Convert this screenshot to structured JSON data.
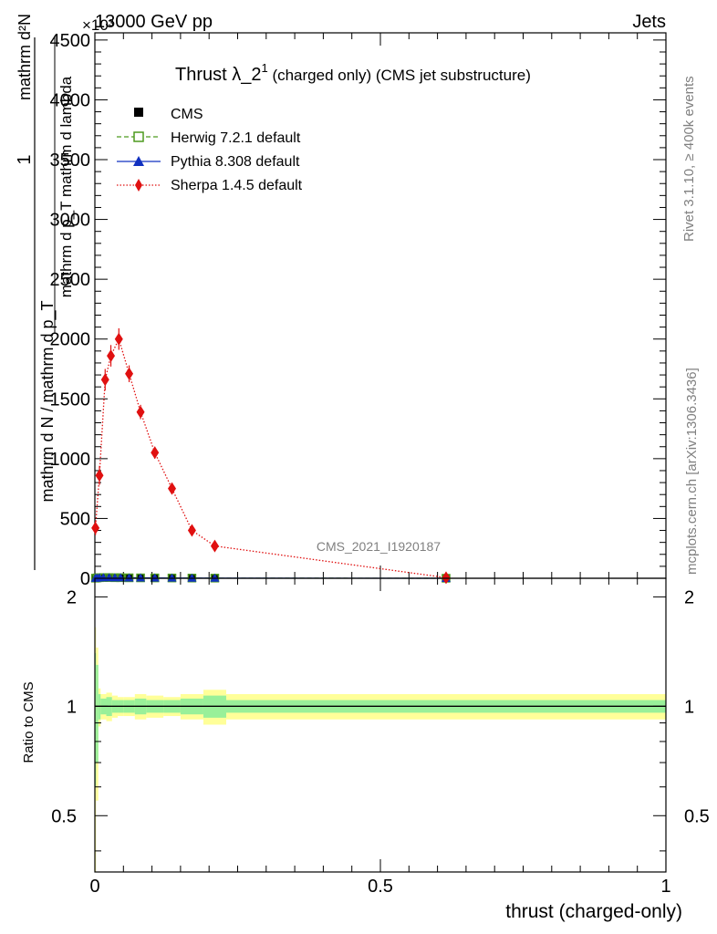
{
  "header": {
    "energy_label": "13000 GeV pp",
    "process_label": "Jets",
    "exponent_label": "×10³"
  },
  "side_labels": {
    "rivet": "Rivet 3.1.10, ≥ 400k events",
    "mcplots": "mcplots.cern.ch [arXiv:1306.3436]"
  },
  "watermark": "CMS_2021_I1920187",
  "main_ylabel": {
    "numer_1": "1",
    "frac1_numer": "mathrm d²N",
    "frac1_denom": "mathrm d p_T mathrm d lambda",
    "frac2_denom": "mathrm d N / mathrm d p_T"
  },
  "chart_data": [
    {
      "type": "line",
      "title": "Thrust λ_2¹ (charged only) (CMS jet substructure)",
      "title_main": "Thrust λ_2",
      "title_sup": "1",
      "title_sub": " (charged only) (CMS jet substructure)",
      "xlabel": "thrust (charged-only)",
      "xlim": [
        0,
        1
      ],
      "ylim": [
        0,
        4560
      ],
      "yticks": [
        0,
        500,
        1000,
        1500,
        2000,
        2500,
        3000,
        3500,
        4000,
        4500
      ],
      "ytick_labels": [
        "0",
        "500",
        "1000",
        "1500",
        "2000",
        "2500",
        "3000",
        "3500",
        "4000",
        "4500"
      ],
      "legend": [
        {
          "name": "CMS",
          "color": "#000000",
          "marker": "square-filled",
          "line": "none"
        },
        {
          "name": "Herwig 7.2.1 default",
          "color": "#4d9a1f",
          "marker": "square-open",
          "line": "dashed"
        },
        {
          "name": "Pythia 8.308 default",
          "color": "#1030c0",
          "marker": "triangle",
          "line": "solid"
        },
        {
          "name": "Sherpa 1.4.5 default",
          "color": "#e01010",
          "marker": "diamond",
          "line": "dotted"
        }
      ],
      "series": [
        {
          "name": "CMS",
          "x": [
            0.001,
            0.004,
            0.008,
            0.015,
            0.025,
            0.035,
            0.045,
            0.06,
            0.08,
            0.105,
            0.135,
            0.17,
            0.21,
            0.615
          ],
          "y": [
            1.0,
            3.0,
            5.0,
            6.0,
            6.0,
            5.0,
            5.0,
            4.0,
            3.5,
            3.0,
            2.5,
            2.0,
            1.5,
            0.3
          ]
        },
        {
          "name": "Herwig 7.2.1 default",
          "x": [
            0.001,
            0.004,
            0.008,
            0.015,
            0.025,
            0.035,
            0.045,
            0.06,
            0.08,
            0.105,
            0.135,
            0.17,
            0.21,
            0.615
          ],
          "y": [
            1.0,
            3.0,
            5.0,
            6.0,
            6.0,
            5.0,
            5.0,
            4.0,
            3.5,
            3.0,
            2.5,
            2.0,
            1.5,
            0.3
          ]
        },
        {
          "name": "Pythia 8.308 default",
          "x": [
            0.001,
            0.004,
            0.008,
            0.015,
            0.025,
            0.035,
            0.045,
            0.06,
            0.08,
            0.105,
            0.135,
            0.17,
            0.21,
            0.615
          ],
          "y": [
            1.0,
            3.0,
            5.0,
            6.0,
            6.0,
            5.0,
            5.0,
            4.0,
            3.5,
            3.0,
            2.5,
            2.0,
            1.5,
            0.3
          ]
        },
        {
          "name": "Sherpa 1.4.5 default",
          "x": [
            0.001,
            0.008,
            0.018,
            0.028,
            0.042,
            0.06,
            0.08,
            0.105,
            0.135,
            0.17,
            0.21,
            0.615
          ],
          "y": [
            420,
            860,
            1660,
            1860,
            2000,
            1710,
            1390,
            1050,
            750,
            400,
            270,
            5
          ],
          "err": [
            60,
            80,
            90,
            90,
            90,
            70,
            60,
            50,
            40,
            30,
            20,
            5
          ]
        }
      ]
    },
    {
      "type": "area",
      "ylabel": "Ratio to CMS",
      "xlim": [
        0,
        1
      ],
      "ylim": [
        0.35,
        2.25
      ],
      "xticks": [
        0,
        0.5,
        1
      ],
      "xtick_labels": [
        "0",
        "0.5",
        "1"
      ],
      "yticks": [
        0.5,
        1,
        2
      ],
      "ytick_labels": [
        "0.5",
        "1",
        "2"
      ],
      "bin_edges": [
        0,
        0.002,
        0.006,
        0.01,
        0.02,
        0.03,
        0.04,
        0.05,
        0.07,
        0.09,
        0.12,
        0.15,
        0.19,
        0.23,
        1.0
      ],
      "band_yellow": [
        0.65,
        0.45,
        0.12,
        0.08,
        0.09,
        0.07,
        0.06,
        0.06,
        0.08,
        0.07,
        0.06,
        0.08,
        0.11,
        0.08
      ],
      "band_green": [
        0.4,
        0.3,
        0.08,
        0.05,
        0.06,
        0.04,
        0.04,
        0.04,
        0.05,
        0.04,
        0.04,
        0.05,
        0.07,
        0.04
      ],
      "reference": 1
    }
  ]
}
